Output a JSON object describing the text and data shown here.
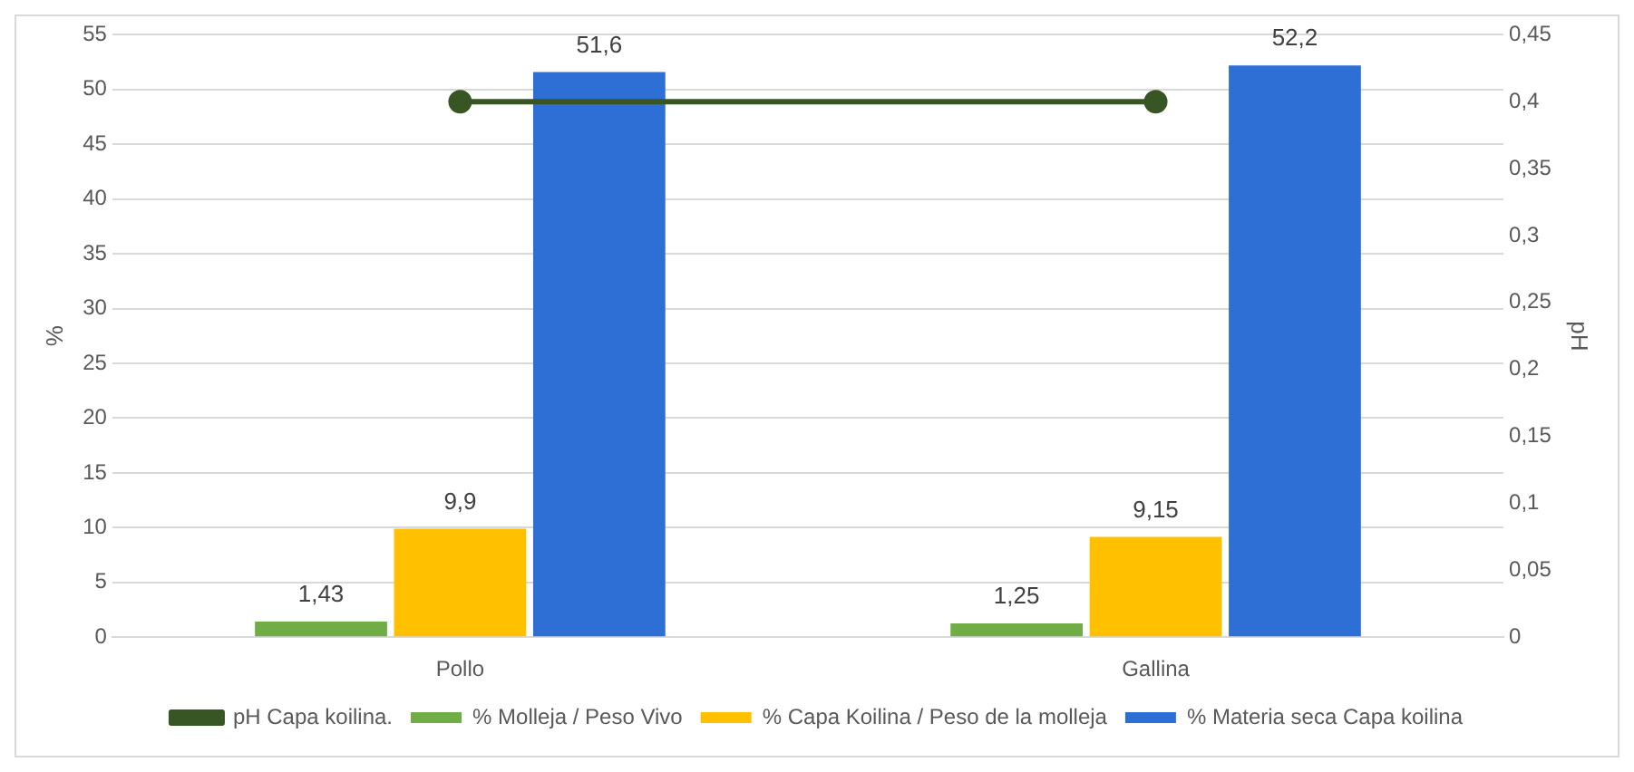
{
  "chart_data": {
    "type": "bar",
    "categories": [
      "Pollo",
      "Gallina"
    ],
    "ylabel": "%",
    "y2label": "pH",
    "ylim": [
      0,
      55
    ],
    "yticks": [
      0,
      5,
      10,
      15,
      20,
      25,
      30,
      35,
      40,
      45,
      50,
      55
    ],
    "y2lim": [
      0,
      0.45
    ],
    "y2ticks": [
      0,
      {
        "value": 0.05,
        "label": "0,05"
      },
      {
        "value": 0.1,
        "label": "0,1"
      },
      {
        "value": 0.15,
        "label": "0,15"
      },
      {
        "value": 0.2,
        "label": "0,2"
      },
      {
        "value": 0.25,
        "label": "0,25"
      },
      {
        "value": 0.3,
        "label": "0,3"
      },
      {
        "value": 0.35,
        "label": "0,35"
      },
      {
        "value": 0.4,
        "label": "0,4"
      },
      {
        "value": 0.45,
        "label": "0,45"
      }
    ],
    "grid": "y",
    "legend": "bottom",
    "series": [
      {
        "name": "% Molleja / Peso Vivo",
        "color": "#70ad47",
        "values": [
          1.43,
          1.25
        ],
        "value_labels": [
          "1,43",
          "1,25"
        ]
      },
      {
        "name": "% Capa Koilina / Peso de la molleja",
        "color": "#ffc000",
        "values": [
          9.9,
          9.15
        ],
        "value_labels": [
          "9,9",
          "9,15"
        ]
      },
      {
        "name": "% Materia seca Capa koilina",
        "color": "#2e6fd6",
        "values": [
          51.6,
          52.2
        ],
        "value_labels": [
          "51,6",
          "52,2"
        ]
      },
      {
        "name": "pH Capa koilina.",
        "type": "line",
        "axis": "y2",
        "color": "#375623",
        "marker": "circle",
        "values": [
          0.4,
          0.4
        ]
      }
    ]
  }
}
